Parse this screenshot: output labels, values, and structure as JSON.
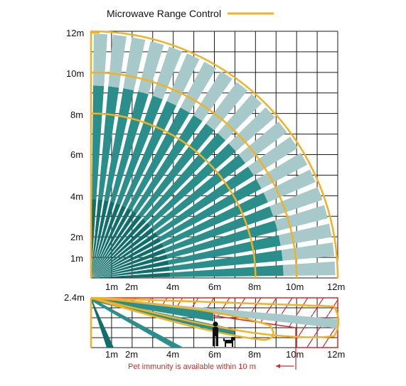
{
  "legend": {
    "label": "Microwave Range Control"
  },
  "top_view": {
    "y_axis_labels": [
      "12m",
      "10m",
      "8m",
      "6m",
      "4m",
      "2m",
      "1m"
    ],
    "x_axis_labels": [
      "1m",
      "2m",
      "4m",
      "6m",
      "8m",
      "10m",
      "12m"
    ],
    "range_arcs_m": [
      8,
      10,
      12
    ]
  },
  "side_view": {
    "height_label": "2.4m",
    "x_axis_labels": [
      "1m",
      "2m",
      "4m",
      "6m",
      "8m",
      "10m",
      "12m"
    ]
  },
  "note": {
    "text": "Pet immunity is available within 10 m"
  },
  "colors": {
    "beam_dark": "#106f6b",
    "beam_mid": "#2a8f8a",
    "beam_light": "#a8c9c9",
    "range_arc": "#f2b124",
    "grid": "#1a1a1a",
    "note": "#d22a2a",
    "hatch": "#d22a2a"
  }
}
